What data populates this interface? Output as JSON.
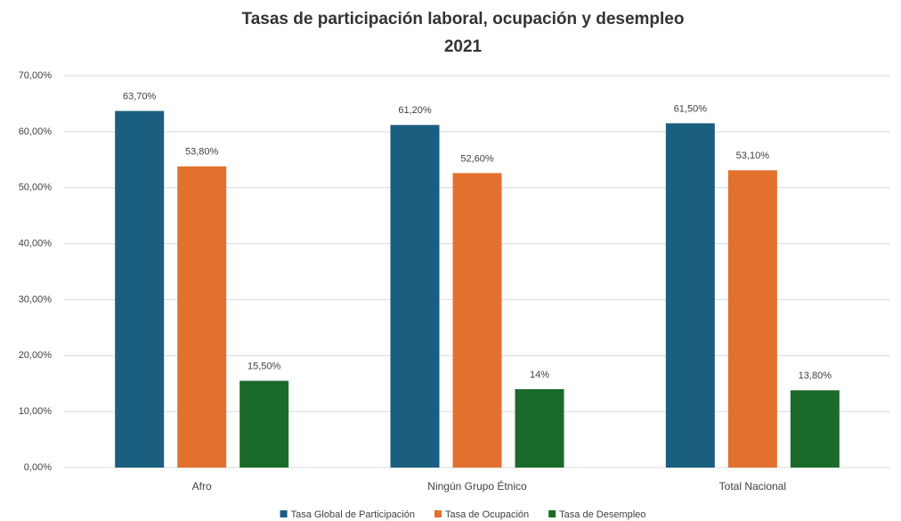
{
  "chart_data": {
    "type": "bar",
    "title": "Tasas de participación laboral, ocupación y desempleo",
    "subtitle": "2021",
    "categories": [
      "Afro",
      "Ningún Grupo Étnico",
      "Total Nacional"
    ],
    "series": [
      {
        "name": "Tasa Global de Participación",
        "color": "#1a5e80",
        "values": [
          63.7,
          61.2,
          61.5
        ],
        "value_labels": [
          "63,70%",
          "61,20%",
          "61,50%"
        ]
      },
      {
        "name": "Tasa de Ocupación",
        "color": "#e2712f",
        "values": [
          53.8,
          52.6,
          53.1
        ],
        "value_labels": [
          "53,80%",
          "52,60%",
          "53,10%"
        ]
      },
      {
        "name": "Tasa de Desempleo",
        "color": "#1a6b2a",
        "values": [
          15.5,
          14,
          13.8
        ],
        "value_labels": [
          "15,50%",
          "14%",
          "13,80%"
        ]
      }
    ],
    "ylim": [
      0,
      70
    ],
    "yticks": [
      {
        "value": 0,
        "label": "0,00%"
      },
      {
        "value": 10,
        "label": "10,00%"
      },
      {
        "value": 20,
        "label": "20,00%"
      },
      {
        "value": 30,
        "label": "30,00%"
      },
      {
        "value": 40,
        "label": "40,00%"
      },
      {
        "value": 50,
        "label": "50,00%"
      },
      {
        "value": 60,
        "label": "60,00%"
      },
      {
        "value": 70,
        "label": "70,00%"
      }
    ],
    "grid": true,
    "legend": "bottom"
  }
}
